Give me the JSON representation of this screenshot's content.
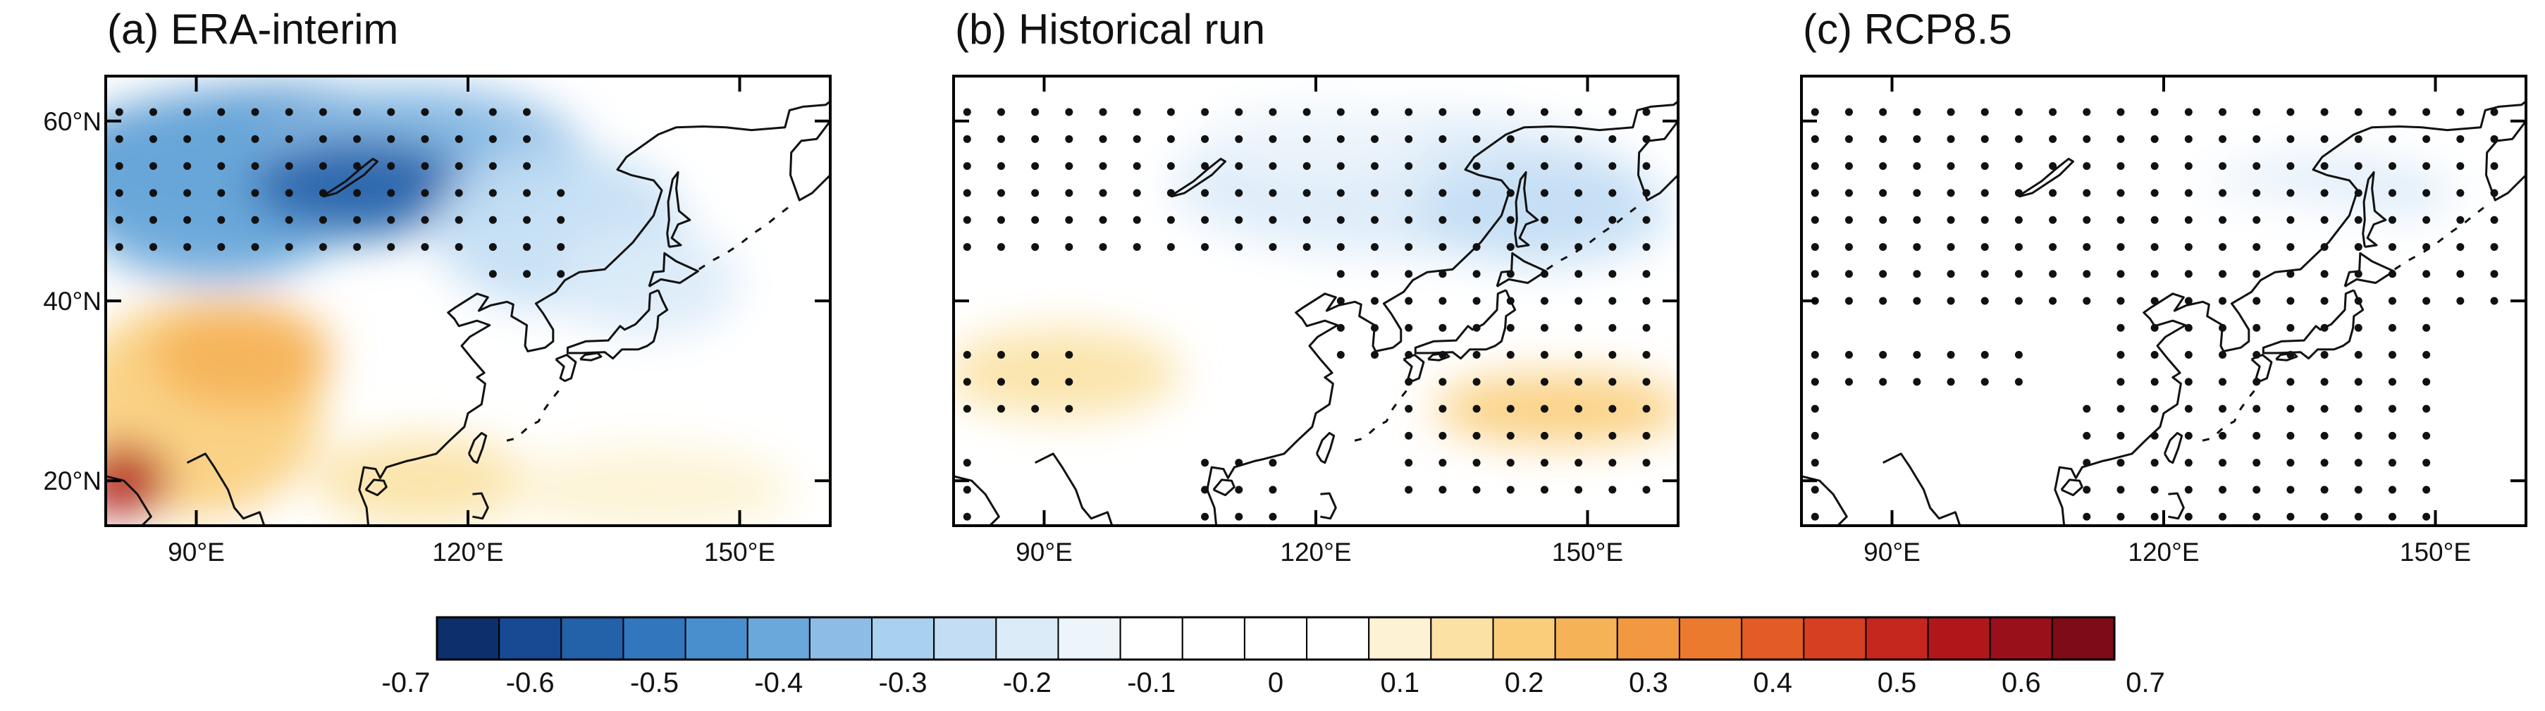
{
  "panels": [
    {
      "id": "a",
      "title": "(a) ERA-interim",
      "dots": "era"
    },
    {
      "id": "b",
      "title": "(b) Historical run",
      "dots": "hist"
    },
    {
      "id": "c",
      "title": "(c) RCP8.5",
      "dots": "rcp"
    }
  ],
  "map": {
    "lon_range": [
      80,
      160
    ],
    "lat_range": [
      15,
      65
    ],
    "lat_ticks": [
      {
        "value": 20,
        "label": "20°N"
      },
      {
        "value": 40,
        "label": "40°N"
      },
      {
        "value": 60,
        "label": "60°N"
      }
    ],
    "lon_ticks": [
      {
        "value": 90,
        "label": "90°E"
      },
      {
        "value": 120,
        "label": "120°E"
      },
      {
        "value": 150,
        "label": "150°E"
      }
    ]
  },
  "colorbar": {
    "labels": [
      "-0.7",
      "-0.6",
      "-0.5",
      "-0.4",
      "-0.3",
      "-0.2",
      "-0.1",
      "0",
      "0.1",
      "0.2",
      "0.3",
      "0.4",
      "0.5",
      "0.6",
      "0.7"
    ],
    "colors": [
      "#0d2f6b",
      "#164a93",
      "#2361a8",
      "#3277bd",
      "#4a8fcd",
      "#6aa7da",
      "#8dbde6",
      "#a9d0ee",
      "#c3def4",
      "#dbebf8",
      "#edf5fb",
      "#ffffff",
      "#ffffff",
      "#ffffff",
      "#ffffff",
      "#fdf3d4",
      "#fbe2a4",
      "#f9cd79",
      "#f6b256",
      "#f29840",
      "#ec7a2e",
      "#e35b25",
      "#d63f20",
      "#c5271e",
      "#b0171b",
      "#99101a",
      "#7d0c17"
    ]
  },
  "shading": {
    "era": [
      {
        "lon": 100,
        "lat": 55,
        "rx": 26,
        "ry": 9,
        "v": -0.45
      },
      {
        "lon": 92,
        "lat": 52,
        "rx": 16,
        "ry": 10,
        "v": -0.4
      },
      {
        "lon": 115,
        "lat": 56,
        "rx": 18,
        "ry": 8,
        "v": -0.35
      },
      {
        "lon": 108,
        "lat": 53,
        "rx": 12,
        "ry": 5,
        "v": -0.55
      },
      {
        "lon": 130,
        "lat": 48,
        "rx": 14,
        "ry": 9,
        "v": -0.25
      },
      {
        "lon": 140,
        "lat": 42,
        "rx": 10,
        "ry": 6,
        "v": -0.2
      },
      {
        "lon": 90,
        "lat": 28,
        "rx": 14,
        "ry": 12,
        "v": 0.2
      },
      {
        "lon": 95,
        "lat": 34,
        "rx": 10,
        "ry": 6,
        "v": 0.25
      },
      {
        "lon": 82,
        "lat": 20,
        "rx": 5,
        "ry": 4,
        "v": 0.55
      },
      {
        "lon": 115,
        "lat": 20,
        "rx": 12,
        "ry": 5,
        "v": 0.15
      },
      {
        "lon": 140,
        "lat": 19,
        "rx": 16,
        "ry": 5,
        "v": 0.12
      }
    ],
    "hist": [
      {
        "lon": 130,
        "lat": 53,
        "rx": 26,
        "ry": 8,
        "v": -0.2
      },
      {
        "lon": 120,
        "lat": 58,
        "rx": 12,
        "ry": 4,
        "v": -0.15
      },
      {
        "lon": 145,
        "lat": 50,
        "rx": 14,
        "ry": 6,
        "v": -0.25
      },
      {
        "lon": 92,
        "lat": 32,
        "rx": 13,
        "ry": 5,
        "v": 0.15
      },
      {
        "lon": 147,
        "lat": 28,
        "rx": 14,
        "ry": 4,
        "v": 0.2
      }
    ],
    "rcp": [
      {
        "lon": 120,
        "lat": 58,
        "rx": 40,
        "ry": 7,
        "v": -0.12
      },
      {
        "lon": 138,
        "lat": 52,
        "rx": 14,
        "ry": 4,
        "v": -0.18
      },
      {
        "lon": 120,
        "lat": 38,
        "rx": 40,
        "ry": 15,
        "v": -0.06
      }
    ]
  }
}
